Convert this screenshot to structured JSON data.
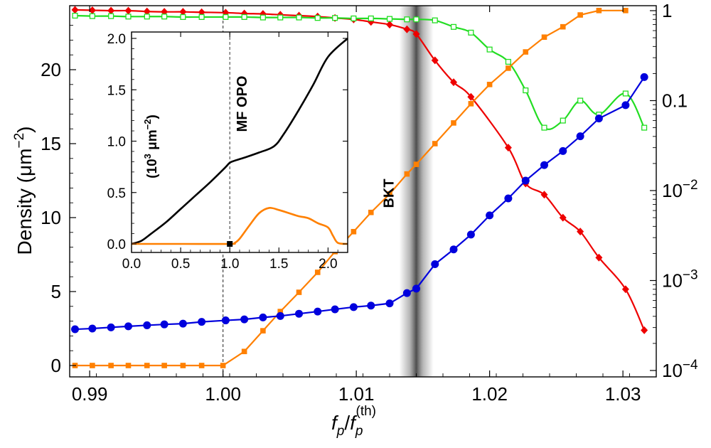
{
  "chart_data": [
    {
      "type": "line",
      "xlabel": "f_p / f_p^(th)",
      "xlabel_parts": {
        "f": "f",
        "p": "p",
        "slash": "/",
        "th": "(th)"
      },
      "ylabel_left": "Density (μm",
      "ylabel_left_exp": "−2",
      "ylabel_left_close": ")",
      "xlim": [
        0.9885,
        1.0325
      ],
      "ylim_left": [
        0,
        24
      ],
      "ylim_right_log": [
        0.0001,
        1
      ],
      "x_ticks": [
        0.99,
        1.0,
        1.01,
        1.02,
        1.03
      ],
      "x_tick_labels": [
        "0.99",
        "1.00",
        "1.01",
        "1.02",
        "1.03"
      ],
      "y_left_ticks": [
        0,
        5,
        10,
        15,
        20
      ],
      "y_left_tick_labels": [
        "0",
        "5",
        "10",
        "15",
        "20"
      ],
      "y_right_ticks": [
        {
          "value": 1,
          "base": "1",
          "exp": ""
        },
        {
          "value": 0.1,
          "base": "0.1",
          "exp": ""
        },
        {
          "value": 0.01,
          "base": "10",
          "exp": "−2"
        },
        {
          "value": 0.001,
          "base": "10",
          "exp": "−3"
        },
        {
          "value": 0.0001,
          "base": "10",
          "exp": "−4"
        }
      ],
      "annotations": {
        "bkt_label": "BKT",
        "bkt_x": 1.0145,
        "threshold_x": 1.0
      },
      "series": [
        {
          "color": "#0000dd",
          "marker": "circle",
          "axis": "left",
          "x": [
            0.9889,
            0.9902,
            0.9916,
            0.9929,
            0.9943,
            0.9956,
            0.997,
            0.9984,
            1.0002,
            1.0016,
            1.003,
            1.0043,
            1.0057,
            1.0071,
            1.0084,
            1.0098,
            1.0111,
            1.0125,
            1.0138,
            1.0145,
            1.0159,
            1.0173,
            1.0186,
            1.02,
            1.0214,
            1.0227,
            1.0241,
            1.0255,
            1.0268,
            1.0282,
            1.0302,
            1.0316
          ],
          "y": [
            2.45,
            2.5,
            2.58,
            2.65,
            2.72,
            2.78,
            2.83,
            2.95,
            3.05,
            3.12,
            3.25,
            3.35,
            3.5,
            3.65,
            3.8,
            3.95,
            4.05,
            4.2,
            4.9,
            5.2,
            6.85,
            7.85,
            8.85,
            10.15,
            11.3,
            12.5,
            13.55,
            14.5,
            15.5,
            16.7,
            17.6,
            19.5
          ]
        },
        {
          "color": "#ff8000",
          "marker": "square",
          "axis": "left",
          "x": [
            0.9889,
            0.9902,
            0.9916,
            0.9929,
            0.9943,
            0.9956,
            0.997,
            0.9984,
            1.0,
            1.0016,
            1.003,
            1.0043,
            1.0057,
            1.0071,
            1.0084,
            1.0098,
            1.0111,
            1.0125,
            1.0138,
            1.0145,
            1.0159,
            1.0173,
            1.0186,
            1.02,
            1.0214,
            1.0227,
            1.0241,
            1.0255,
            1.0268,
            1.0282,
            1.0302
          ],
          "y": [
            0,
            0,
            0,
            0,
            0,
            0,
            0,
            0,
            0,
            0.95,
            2.35,
            3.65,
            4.95,
            6.3,
            7.7,
            9.05,
            10.35,
            11.6,
            12.95,
            13.6,
            15.0,
            16.4,
            17.7,
            19.0,
            20.1,
            21.2,
            22.2,
            22.9,
            23.7,
            24.0,
            24.0
          ]
        },
        {
          "color": "#ee0000",
          "marker": "diamond",
          "axis": "right",
          "x": [
            0.9889,
            0.9902,
            0.9916,
            0.9929,
            0.9943,
            0.9956,
            0.997,
            0.9984,
            1.0002,
            1.0016,
            1.003,
            1.0043,
            1.0057,
            1.0071,
            1.0084,
            1.0098,
            1.0111,
            1.0125,
            1.0138,
            1.0145,
            1.0159,
            1.0173,
            1.0186,
            1.0214,
            1.0227,
            1.0241,
            1.0255,
            1.0268,
            1.0282,
            1.0302,
            1.0316
          ],
          "y": [
            1.02,
            1.01,
            1.0,
            1.0,
            0.98,
            0.97,
            0.97,
            0.96,
            0.95,
            0.93,
            0.92,
            0.9,
            0.88,
            0.86,
            0.83,
            0.8,
            0.75,
            0.7,
            0.62,
            0.55,
            0.28,
            0.16,
            0.11,
            0.03,
            0.012,
            0.009,
            0.005,
            0.0035,
            0.0018,
            0.0008,
            0.00028
          ]
        },
        {
          "color": "#22dd22",
          "marker": "open-square",
          "axis": "right",
          "x": [
            0.9889,
            0.9902,
            0.9916,
            0.9929,
            0.9943,
            0.9956,
            0.997,
            0.9984,
            1.0002,
            1.0016,
            1.003,
            1.0043,
            1.0057,
            1.0071,
            1.0084,
            1.0098,
            1.0111,
            1.0125,
            1.0138,
            1.0145,
            1.0159,
            1.0173,
            1.0186,
            1.02,
            1.0214,
            1.0227,
            1.0241,
            1.0255,
            1.0268,
            1.0282,
            1.0302,
            1.0316
          ],
          "y": [
            0.88,
            0.87,
            0.87,
            0.86,
            0.86,
            0.86,
            0.85,
            0.85,
            0.85,
            0.85,
            0.84,
            0.84,
            0.84,
            0.83,
            0.83,
            0.82,
            0.82,
            0.81,
            0.8,
            0.8,
            0.78,
            0.66,
            0.57,
            0.37,
            0.27,
            0.13,
            0.05,
            0.06,
            0.1,
            0.07,
            0.12,
            0.05
          ]
        }
      ]
    },
    {
      "type": "line",
      "ylabel": "(10",
      "ylabel_exp": "3",
      "ylabel_mid": " μm",
      "ylabel_unit_exp": "−2",
      "ylabel_close": ")",
      "xlim": [
        0,
        2.2
      ],
      "ylim": [
        0,
        2.0
      ],
      "x_ticks": [
        0,
        0.5,
        1.0,
        1.5,
        2.0
      ],
      "x_tick_labels": [
        "0.0",
        "0.5",
        "1.0",
        "1.5",
        "2.0"
      ],
      "y_ticks": [
        0,
        0.5,
        1.0,
        1.5,
        2.0
      ],
      "y_tick_labels": [
        "0.0",
        "0.5",
        "1.0",
        "1.5",
        "2.0"
      ],
      "annotations": {
        "mf_opo_label": "MF OPO",
        "threshold_x": 1.0
      },
      "series": [
        {
          "color": "#000000",
          "x": [
            0,
            0.1,
            0.2,
            0.35,
            0.5,
            0.65,
            0.8,
            0.95,
            1.0,
            1.05,
            1.15,
            1.3,
            1.45,
            1.55,
            1.7,
            1.85,
            2.0,
            2.2
          ],
          "y": [
            0,
            0.03,
            0.1,
            0.21,
            0.34,
            0.47,
            0.6,
            0.74,
            0.79,
            0.81,
            0.84,
            0.89,
            0.95,
            1.07,
            1.3,
            1.55,
            1.82,
            2.0
          ]
        },
        {
          "color": "#ff8000",
          "x": [
            0,
            0.5,
            1.0,
            1.05,
            1.1,
            1.2,
            1.3,
            1.4,
            1.5,
            1.6,
            1.7,
            1.8,
            1.9,
            2.0,
            2.05,
            2.1,
            2.2
          ],
          "y": [
            0,
            0,
            0,
            0.01,
            0.05,
            0.18,
            0.3,
            0.35,
            0.33,
            0.3,
            0.27,
            0.25,
            0.2,
            0.16,
            0.08,
            0.01,
            0
          ]
        }
      ]
    }
  ]
}
